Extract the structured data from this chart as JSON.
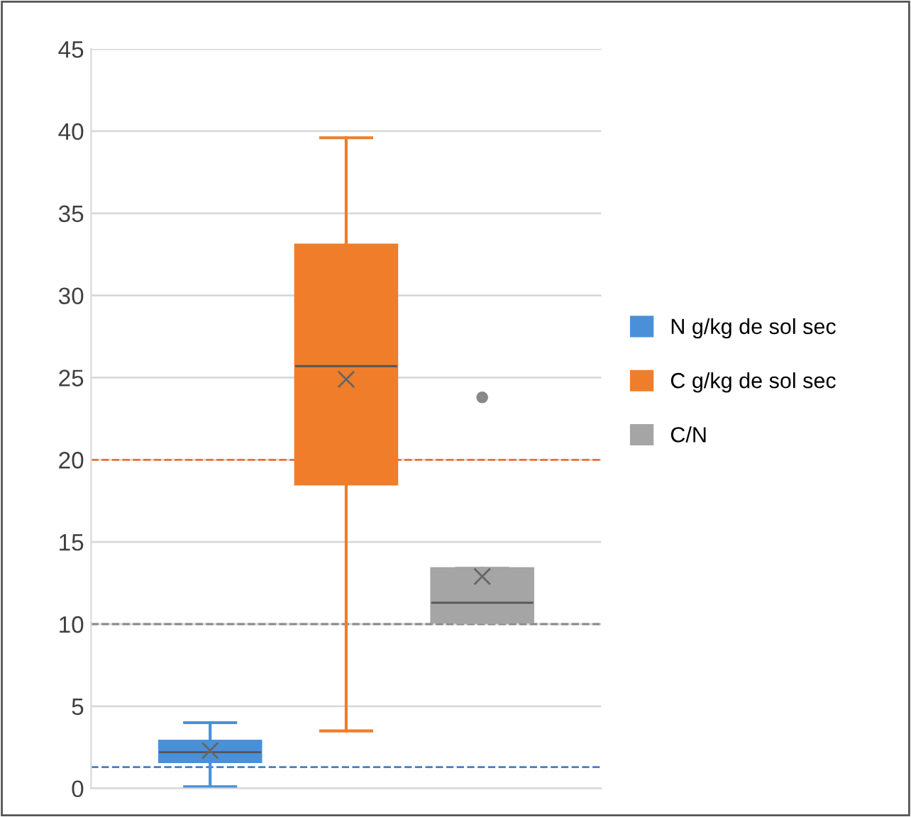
{
  "chart_data": {
    "type": "box",
    "categories": [
      null
    ],
    "series": [
      {
        "name": "N g/kg de sol sec",
        "color": "#4a90d9",
        "boxes": [
          {
            "low": 0.1,
            "q1": 1.6,
            "median": 2.2,
            "q3": 2.9,
            "high": 4.0,
            "mean": 2.3
          }
        ]
      },
      {
        "name": "C g/kg de sol sec",
        "color": "#f07d2a",
        "boxes": [
          {
            "low": 3.5,
            "q1": 18.5,
            "median": 25.7,
            "q3": 33.1,
            "high": 39.6,
            "mean": 24.9
          }
        ]
      },
      {
        "name": "C/N",
        "color": "#a5a5a5",
        "boxes": [
          {
            "low": 10.1,
            "q1": 10.1,
            "median": 11.3,
            "q3": 13.4,
            "high": 13.4,
            "mean": 12.9,
            "outliers": [
              23.8
            ]
          }
        ]
      }
    ],
    "ylim": [
      0,
      45
    ],
    "yticks": [
      0,
      5,
      10,
      15,
      20,
      25,
      30,
      35,
      40,
      45
    ],
    "grid": "y",
    "legend": "right",
    "tick_labels": "y",
    "ref_lines": [
      {
        "axis": "y",
        "value": 1.3,
        "color": "#4a7fc0",
        "line_style": "dashed"
      },
      {
        "axis": "y",
        "value": 20,
        "color": "#e8703a",
        "line_style": "dashed"
      },
      {
        "axis": "y",
        "value": 10,
        "color": "#8a8a8a",
        "line_style": "dashed"
      }
    ]
  }
}
